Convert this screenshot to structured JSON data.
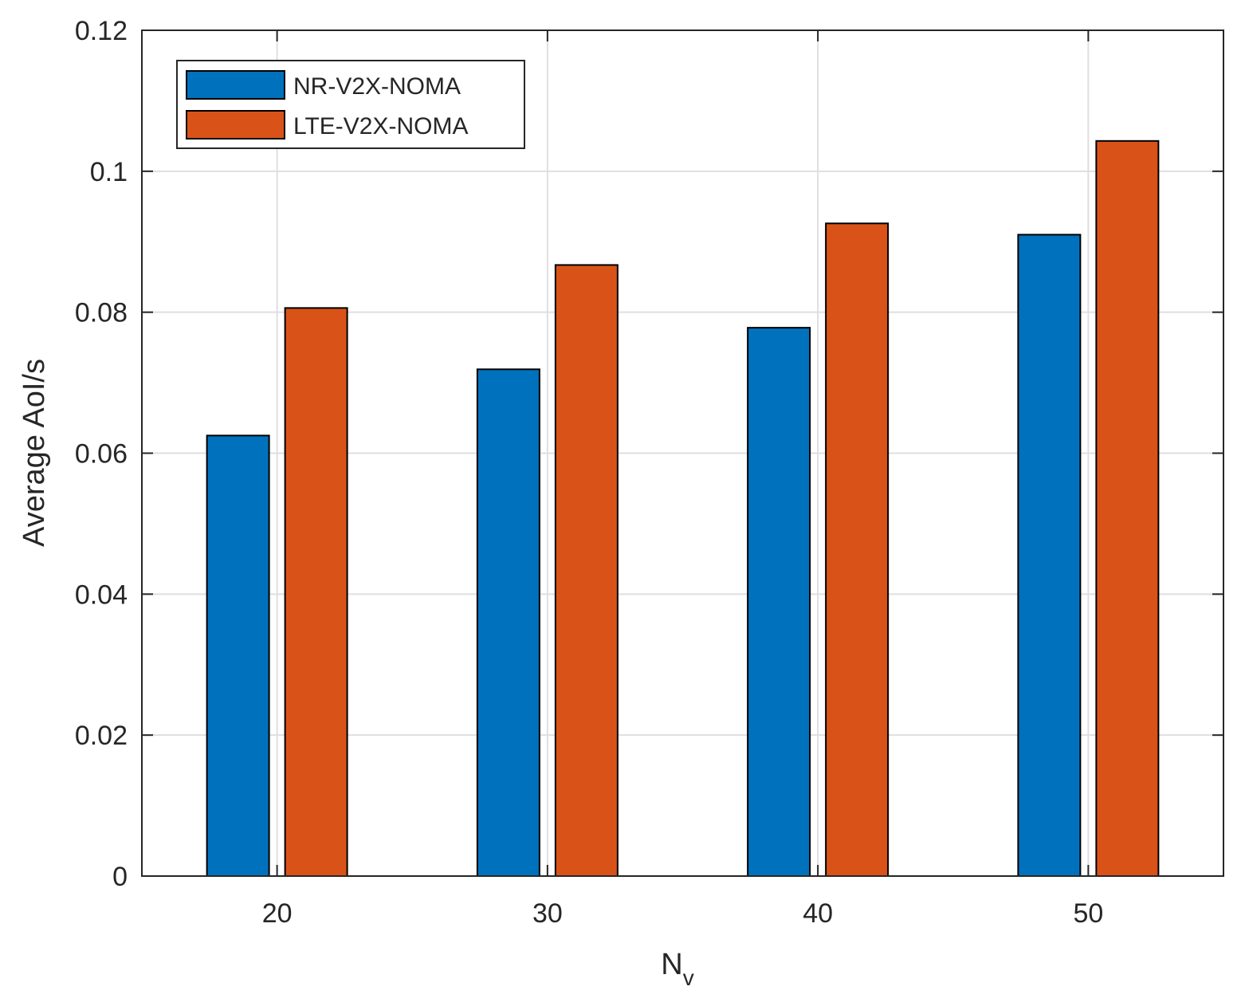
{
  "chart_data": {
    "type": "bar",
    "title": "",
    "xlabel": "N",
    "xlabel_subscript": "v",
    "ylabel": "Average AoI/s",
    "categories": [
      "20",
      "30",
      "40",
      "50"
    ],
    "series": [
      {
        "name": "NR-V2X-NOMA",
        "color": "#0072bd",
        "values": [
          0.0625,
          0.0719,
          0.0778,
          0.091
        ]
      },
      {
        "name": "LTE-V2X-NOMA",
        "color": "#d95319",
        "values": [
          0.0806,
          0.0867,
          0.0926,
          0.1043
        ]
      }
    ],
    "ylim": [
      0,
      0.12
    ],
    "yticks": [
      0,
      0.02,
      0.04,
      0.06,
      0.08,
      0.1,
      0.12
    ],
    "ytick_labels": [
      "0",
      "0.02",
      "0.04",
      "0.06",
      "0.08",
      "0.1",
      "0.12"
    ],
    "grid": true,
    "legend_position": "top-left"
  }
}
